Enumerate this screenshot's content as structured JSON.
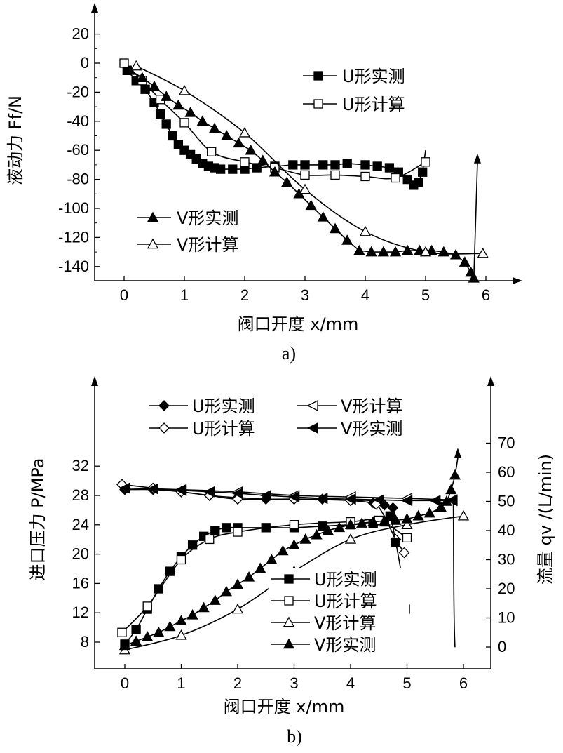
{
  "chart_data": [
    {
      "type": "line",
      "caption": "a)",
      "xlabel": "阀口开度 x/mm",
      "ylabel": "液动力 Ff/N",
      "xlim": [
        0,
        6
      ],
      "ylim": [
        -150,
        20
      ],
      "xticks": [
        "0",
        "1",
        "2",
        "3",
        "4",
        "5",
        "6"
      ],
      "yticks": [
        "20",
        "0",
        "-20",
        "-40",
        "-60",
        "-80",
        "-100",
        "-120",
        "-140"
      ],
      "series": [
        {
          "name": "U形实测",
          "marker": "square-filled",
          "points": [
            [
              0.05,
              -5
            ],
            [
              0.2,
              -12
            ],
            [
              0.35,
              -18
            ],
            [
              0.5,
              -27
            ],
            [
              0.6,
              -35
            ],
            [
              0.7,
              -42
            ],
            [
              0.8,
              -50
            ],
            [
              0.9,
              -56
            ],
            [
              1.0,
              -60
            ],
            [
              1.1,
              -63
            ],
            [
              1.2,
              -66
            ],
            [
              1.3,
              -69
            ],
            [
              1.4,
              -71
            ],
            [
              1.5,
              -72
            ],
            [
              1.6,
              -73
            ],
            [
              1.8,
              -73
            ],
            [
              2.0,
              -73
            ],
            [
              2.2,
              -72
            ],
            [
              2.5,
              -71
            ],
            [
              2.8,
              -70
            ],
            [
              3.0,
              -70
            ],
            [
              3.3,
              -70
            ],
            [
              3.5,
              -70
            ],
            [
              3.7,
              -69
            ],
            [
              4.0,
              -70
            ],
            [
              4.2,
              -71
            ],
            [
              4.4,
              -72
            ],
            [
              4.55,
              -75
            ],
            [
              4.7,
              -80
            ],
            [
              4.8,
              -84
            ],
            [
              4.88,
              -82
            ],
            [
              4.95,
              -75
            ],
            [
              5.0,
              -60
            ]
          ]
        },
        {
          "name": "U形计算",
          "marker": "square-open",
          "points": [
            [
              0,
              0
            ],
            [
              0.3,
              -12
            ],
            [
              0.6,
              -25
            ],
            [
              1.0,
              -41
            ],
            [
              1.45,
              -61
            ],
            [
              2.0,
              -68
            ],
            [
              2.5,
              -72
            ],
            [
              3.0,
              -77
            ],
            [
              3.5,
              -77
            ],
            [
              4.0,
              -78
            ],
            [
              4.5,
              -79
            ],
            [
              5.0,
              -68
            ]
          ]
        },
        {
          "name": "V形实测",
          "marker": "triangle-filled",
          "points": [
            [
              0.1,
              -5
            ],
            [
              0.3,
              -10
            ],
            [
              0.5,
              -16
            ],
            [
              0.7,
              -23
            ],
            [
              0.9,
              -29
            ],
            [
              1.1,
              -34
            ],
            [
              1.3,
              -40
            ],
            [
              1.5,
              -45
            ],
            [
              1.7,
              -50
            ],
            [
              1.9,
              -55
            ],
            [
              2.1,
              -60
            ],
            [
              2.3,
              -67
            ],
            [
              2.5,
              -75
            ],
            [
              2.7,
              -82
            ],
            [
              2.9,
              -90
            ],
            [
              3.1,
              -98
            ],
            [
              3.3,
              -106
            ],
            [
              3.5,
              -114
            ],
            [
              3.7,
              -122
            ],
            [
              3.9,
              -129
            ],
            [
              4.1,
              -130
            ],
            [
              4.3,
              -130
            ],
            [
              4.5,
              -130
            ],
            [
              4.7,
              -129
            ],
            [
              4.9,
              -129
            ],
            [
              5.1,
              -129
            ],
            [
              5.3,
              -130
            ],
            [
              5.5,
              -132
            ],
            [
              5.65,
              -137
            ],
            [
              5.75,
              -144
            ],
            [
              5.8,
              -148
            ],
            [
              5.86,
              -68
            ]
          ]
        },
        {
          "name": "V形计算",
          "marker": "triangle-open",
          "points": [
            [
              0.2,
              -2
            ],
            [
              1.0,
              -19
            ],
            [
              2.0,
              -48
            ],
            [
              3.0,
              -87
            ],
            [
              4.0,
              -116
            ],
            [
              5.0,
              -130
            ],
            [
              5.95,
              -131
            ]
          ]
        }
      ],
      "legend": [
        {
          "position": "top-right",
          "entries": [
            "U形实测",
            "U形计算"
          ]
        },
        {
          "position": "bottom-left",
          "entries": [
            "V形实测",
            "V形计算"
          ]
        }
      ]
    },
    {
      "type": "line",
      "caption": "b)",
      "xlabel": "阀口开度 x/mm",
      "ylabel_left": "进口压力 P/MPa",
      "ylabel_right": "流量 qv /(L/min)",
      "xlim": [
        0,
        6
      ],
      "ylim_left": [
        6,
        34
      ],
      "ylim_right": [
        0,
        75
      ],
      "xticks": [
        "0",
        "1",
        "2",
        "3",
        "4",
        "5",
        "6"
      ],
      "yticks_left": [
        "32",
        "28",
        "24",
        "20",
        "16",
        "12",
        "8"
      ],
      "yticks_right": [
        "70",
        "60",
        "50",
        "40",
        "30",
        "20",
        "10",
        "0"
      ],
      "series_pressure": [
        {
          "name": "U形实测",
          "marker": "diamond-filled",
          "points": [
            [
              0,
              28.8
            ],
            [
              0.5,
              28.8
            ],
            [
              1.0,
              28.5
            ],
            [
              1.5,
              28.0
            ],
            [
              2.0,
              27.7
            ],
            [
              2.5,
              27.5
            ],
            [
              3.0,
              27.5
            ],
            [
              3.5,
              27.5
            ],
            [
              4.0,
              27.3
            ],
            [
              4.4,
              27.0
            ],
            [
              4.6,
              26.7
            ],
            [
              4.75,
              26.3
            ]
          ]
        },
        {
          "name": "U形计算",
          "marker": "diamond-open",
          "points": [
            [
              -0.05,
              29.5
            ],
            [
              0.5,
              29.0
            ],
            [
              1.0,
              28.5
            ],
            [
              1.5,
              28.0
            ],
            [
              2.0,
              27.5
            ],
            [
              3.0,
              27.5
            ],
            [
              4.0,
              27.3
            ],
            [
              4.45,
              26.8
            ],
            [
              4.8,
              22.0
            ],
            [
              4.95,
              20.2
            ]
          ]
        },
        {
          "name": "V形计算",
          "marker": "triangle-left-open",
          "points": [
            [
              0,
              29.0
            ],
            [
              1.0,
              28.8
            ],
            [
              2.0,
              28.5
            ],
            [
              3.0,
              28.0
            ],
            [
              4.0,
              27.8
            ],
            [
              5.0,
              27.6
            ],
            [
              5.8,
              27.4
            ]
          ]
        },
        {
          "name": "V形实测",
          "marker": "triangle-left-filled",
          "points": [
            [
              0,
              29.0
            ],
            [
              0.5,
              28.9
            ],
            [
              1.0,
              28.7
            ],
            [
              1.5,
              28.5
            ],
            [
              2.0,
              28.3
            ],
            [
              2.5,
              28.0
            ],
            [
              3.0,
              27.8
            ],
            [
              3.5,
              27.6
            ],
            [
              4.0,
              27.5
            ],
            [
              4.5,
              27.4
            ],
            [
              5.0,
              27.3
            ],
            [
              5.5,
              27.3
            ],
            [
              5.8,
              27.3
            ]
          ]
        }
      ],
      "series_flow": [
        {
          "name": "U形实测",
          "marker": "square-filled",
          "points": [
            [
              0,
              1
            ],
            [
              0.2,
              6
            ],
            [
              0.4,
              13
            ],
            [
              0.6,
              20
            ],
            [
              0.8,
              26
            ],
            [
              1.0,
              31
            ],
            [
              1.2,
              35
            ],
            [
              1.4,
              38
            ],
            [
              1.6,
              40
            ],
            [
              1.8,
              41
            ],
            [
              2.0,
              41
            ],
            [
              2.5,
              41
            ],
            [
              3.0,
              41
            ],
            [
              3.5,
              41.5
            ],
            [
              4.0,
              42
            ],
            [
              4.4,
              42.5
            ],
            [
              4.6,
              43
            ],
            [
              4.7,
              45
            ],
            [
              4.8,
              36
            ],
            [
              4.9,
              25
            ],
            [
              4.97,
              13
            ]
          ]
        },
        {
          "name": "U形计算",
          "marker": "square-open",
          "points": [
            [
              -0.05,
              5
            ],
            [
              0.4,
              14
            ],
            [
              1.0,
              30
            ],
            [
              1.5,
              37
            ],
            [
              2.0,
              39.5
            ],
            [
              3.0,
              42
            ],
            [
              4.0,
              43
            ],
            [
              4.5,
              43.5
            ],
            [
              5.0,
              37.5
            ]
          ]
        },
        {
          "name": "V形计算",
          "marker": "triangle-open",
          "points": [
            [
              0,
              -1
            ],
            [
              1.0,
              4
            ],
            [
              2.0,
              13
            ],
            [
              3.0,
              26
            ],
            [
              4.0,
              37
            ],
            [
              5.0,
              42
            ],
            [
              6.0,
              45
            ]
          ]
        },
        {
          "name": "V形实测",
          "marker": "triangle-filled",
          "points": [
            [
              0,
              0.5
            ],
            [
              0.2,
              2
            ],
            [
              0.4,
              3.5
            ],
            [
              0.6,
              5
            ],
            [
              0.8,
              7
            ],
            [
              1.0,
              9
            ],
            [
              1.2,
              11
            ],
            [
              1.4,
              13.5
            ],
            [
              1.6,
              16
            ],
            [
              1.8,
              19
            ],
            [
              2.0,
              21.5
            ],
            [
              2.2,
              24
            ],
            [
              2.4,
              27
            ],
            [
              2.6,
              30
            ],
            [
              2.8,
              33
            ],
            [
              3.0,
              35
            ],
            [
              3.2,
              37
            ],
            [
              3.4,
              38.5
            ],
            [
              3.6,
              40
            ],
            [
              3.8,
              41
            ],
            [
              4.0,
              42
            ],
            [
              4.2,
              42.5
            ],
            [
              4.4,
              43
            ],
            [
              4.6,
              43.3
            ],
            [
              4.8,
              43.5
            ],
            [
              5.0,
              44
            ],
            [
              5.2,
              45
            ],
            [
              5.4,
              46
            ],
            [
              5.6,
              48
            ],
            [
              5.7,
              50
            ],
            [
              5.78,
              54
            ],
            [
              5.85,
              59
            ],
            [
              5.9,
              65
            ]
          ]
        }
      ],
      "legend": [
        {
          "position": "top",
          "entries": [
            "U形实测",
            "V形计算",
            "U形计算",
            "V形实测"
          ]
        },
        {
          "position": "center-right",
          "entries": [
            "U形实测",
            "U形计算",
            "V形计算",
            "V形实测"
          ]
        }
      ]
    }
  ]
}
